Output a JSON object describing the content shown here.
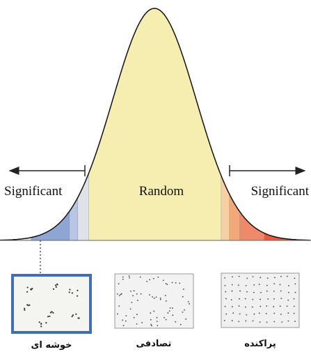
{
  "labels": {
    "left_region": "Significant",
    "center_region": "Random",
    "right_region": "Significant"
  },
  "patterns": [
    "خوشه ای",
    "تصادفی",
    "پراکنده"
  ]
}
